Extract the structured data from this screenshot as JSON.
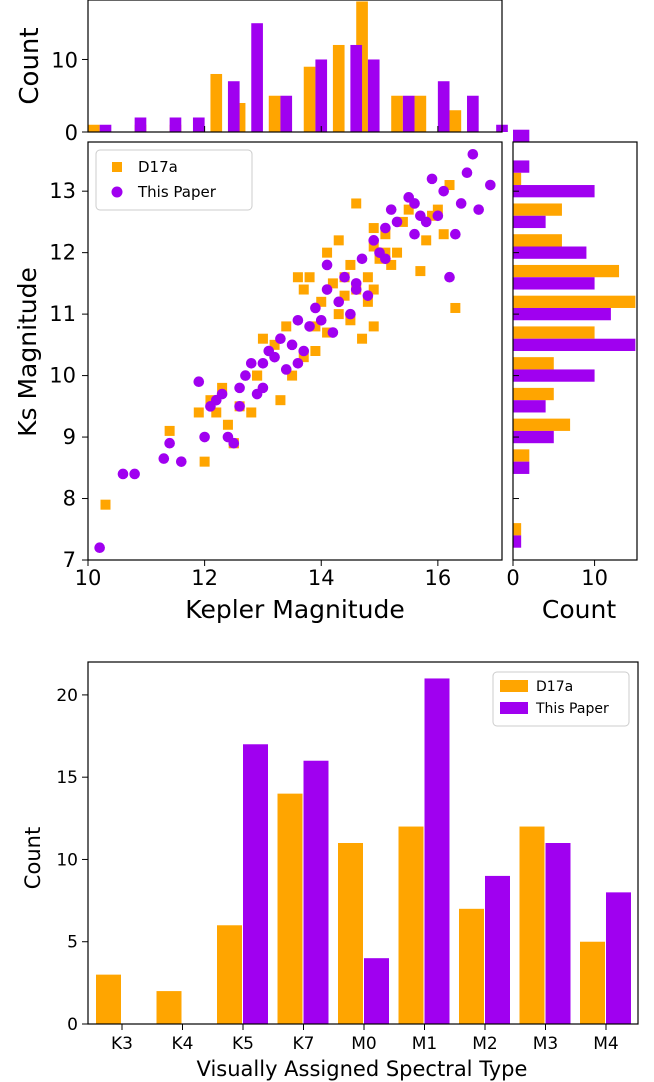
{
  "colors": {
    "d17a": "#ffa500",
    "this_paper": "#a000f0",
    "axis": "#000000",
    "background": "#ffffff"
  },
  "chart_data": [
    {
      "id": "top-hist",
      "type": "bar",
      "xlabel": "",
      "ylabel": "Count",
      "xlim": [
        10,
        17.1
      ],
      "ylim": [
        0,
        18.2
      ],
      "yticks": [
        "0",
        "10"
      ],
      "series": [
        {
          "name": "D17a",
          "color": "#ffa500",
          "bins": [
            [
              10.0,
              1
            ],
            [
              10.8,
              1
            ],
            [
              11.4,
              1
            ],
            [
              12.1,
              8
            ],
            [
              12.5,
              4
            ],
            [
              13.1,
              5
            ],
            [
              13.7,
              9
            ],
            [
              14.2,
              12
            ],
            [
              14.6,
              18
            ],
            [
              15.2,
              5
            ],
            [
              15.6,
              5
            ],
            [
              16.2,
              3
            ]
          ]
        },
        {
          "name": "This Paper",
          "color": "#a000f0",
          "bins": [
            [
              10.2,
              1
            ],
            [
              10.8,
              2
            ],
            [
              11.4,
              2
            ],
            [
              11.8,
              2
            ],
            [
              12.4,
              7
            ],
            [
              12.8,
              15
            ],
            [
              13.3,
              5
            ],
            [
              13.9,
              10
            ],
            [
              14.5,
              12
            ],
            [
              14.8,
              10
            ],
            [
              15.4,
              5
            ],
            [
              16.0,
              7
            ],
            [
              16.5,
              5
            ],
            [
              17.0,
              1
            ]
          ]
        }
      ]
    },
    {
      "id": "scatter",
      "type": "scatter",
      "xlabel": "Kepler Magnitude",
      "ylabel": "Ks Magnitude",
      "xlim": [
        10,
        17.1
      ],
      "ylim": [
        7,
        13.8
      ],
      "xticks": [
        "10",
        "12",
        "14",
        "16"
      ],
      "yticks": [
        "7",
        "8",
        "9",
        "10",
        "11",
        "12",
        "13"
      ],
      "legend": "top-left",
      "series": [
        {
          "name": "D17a",
          "marker": "square",
          "color": "#ffa500",
          "points": [
            [
              10.3,
              7.9
            ],
            [
              11.4,
              9.1
            ],
            [
              11.9,
              9.4
            ],
            [
              12.0,
              8.6
            ],
            [
              12.1,
              9.6
            ],
            [
              12.2,
              9.4
            ],
            [
              12.3,
              9.8
            ],
            [
              12.4,
              9.2
            ],
            [
              12.5,
              8.9
            ],
            [
              12.6,
              9.5
            ],
            [
              12.8,
              9.4
            ],
            [
              12.9,
              10.0
            ],
            [
              13.0,
              10.6
            ],
            [
              13.2,
              10.5
            ],
            [
              13.3,
              9.6
            ],
            [
              13.4,
              10.8
            ],
            [
              13.5,
              10.0
            ],
            [
              13.7,
              10.3
            ],
            [
              13.7,
              11.4
            ],
            [
              13.8,
              11.6
            ],
            [
              13.9,
              10.8
            ],
            [
              14.0,
              11.2
            ],
            [
              14.1,
              10.7
            ],
            [
              14.2,
              11.5
            ],
            [
              14.3,
              11.0
            ],
            [
              14.4,
              11.3
            ],
            [
              14.5,
              10.9
            ],
            [
              14.5,
              11.8
            ],
            [
              14.6,
              11.4
            ],
            [
              14.7,
              10.6
            ],
            [
              14.8,
              11.6
            ],
            [
              14.9,
              12.1
            ],
            [
              15.0,
              11.9
            ],
            [
              15.1,
              12.3
            ],
            [
              15.2,
              11.8
            ],
            [
              15.3,
              12.0
            ],
            [
              15.4,
              12.5
            ],
            [
              15.5,
              12.7
            ],
            [
              15.7,
              11.7
            ],
            [
              15.8,
              12.2
            ],
            [
              16.0,
              12.7
            ],
            [
              16.1,
              12.3
            ],
            [
              16.2,
              13.1
            ],
            [
              16.3,
              11.1
            ],
            [
              14.8,
              11.2
            ],
            [
              14.1,
              12.0
            ],
            [
              13.6,
              11.6
            ],
            [
              14.4,
              11.6
            ],
            [
              14.9,
              12.4
            ],
            [
              14.6,
              12.8
            ],
            [
              14.9,
              11.4
            ],
            [
              15.1,
              12.0
            ],
            [
              14.9,
              10.8
            ],
            [
              14.3,
              12.2
            ],
            [
              13.9,
              10.4
            ],
            [
              15.9,
              12.6
            ],
            [
              12.9,
              10.0
            ],
            [
              12.5,
              8.9
            ]
          ]
        },
        {
          "name": "This Paper",
          "marker": "circle",
          "color": "#a000f0",
          "points": [
            [
              10.2,
              7.2
            ],
            [
              10.6,
              8.4
            ],
            [
              10.8,
              8.4
            ],
            [
              11.3,
              8.65
            ],
            [
              11.4,
              8.9
            ],
            [
              11.6,
              8.6
            ],
            [
              11.9,
              9.9
            ],
            [
              12.0,
              9.0
            ],
            [
              12.2,
              9.6
            ],
            [
              12.3,
              9.7
            ],
            [
              12.4,
              9.0
            ],
            [
              12.5,
              8.9
            ],
            [
              12.6,
              9.8
            ],
            [
              12.7,
              10.0
            ],
            [
              12.8,
              10.2
            ],
            [
              12.9,
              9.7
            ],
            [
              13.0,
              10.2
            ],
            [
              13.1,
              10.4
            ],
            [
              13.3,
              10.6
            ],
            [
              13.4,
              10.1
            ],
            [
              13.5,
              10.5
            ],
            [
              13.6,
              10.2
            ],
            [
              13.7,
              10.4
            ],
            [
              13.8,
              10.8
            ],
            [
              13.9,
              11.1
            ],
            [
              14.0,
              10.9
            ],
            [
              14.1,
              11.4
            ],
            [
              14.2,
              10.7
            ],
            [
              14.3,
              11.2
            ],
            [
              14.4,
              11.6
            ],
            [
              14.5,
              11.0
            ],
            [
              14.6,
              11.5
            ],
            [
              14.7,
              11.9
            ],
            [
              14.8,
              11.3
            ],
            [
              14.9,
              12.2
            ],
            [
              15.0,
              12.0
            ],
            [
              15.1,
              12.4
            ],
            [
              15.2,
              12.7
            ],
            [
              15.3,
              12.5
            ],
            [
              15.5,
              12.9
            ],
            [
              15.6,
              12.8
            ],
            [
              15.7,
              12.6
            ],
            [
              15.8,
              12.5
            ],
            [
              15.9,
              13.2
            ],
            [
              16.0,
              12.6
            ],
            [
              16.1,
              13.0
            ],
            [
              16.2,
              11.6
            ],
            [
              16.3,
              12.3
            ],
            [
              16.4,
              12.8
            ],
            [
              16.5,
              13.3
            ],
            [
              16.6,
              13.6
            ],
            [
              16.7,
              12.7
            ],
            [
              16.9,
              13.1
            ],
            [
              13.2,
              10.3
            ],
            [
              13.6,
              10.9
            ],
            [
              14.1,
              11.8
            ],
            [
              14.6,
              11.4
            ],
            [
              15.1,
              11.9
            ],
            [
              15.6,
              12.3
            ],
            [
              12.1,
              9.5
            ],
            [
              12.6,
              9.5
            ],
            [
              13.0,
              9.8
            ]
          ]
        }
      ]
    },
    {
      "id": "right-hist",
      "type": "bar",
      "orientation": "horizontal",
      "xlabel": "Count",
      "ylabel": "",
      "xlim": [
        0,
        15.2
      ],
      "ylim": [
        7,
        13.8
      ],
      "xticks": [
        "0",
        "10"
      ],
      "series": [
        {
          "name": "D17a",
          "color": "#ffa500",
          "bins": [
            [
              7.4,
              1
            ],
            [
              8.6,
              2
            ],
            [
              9.1,
              7
            ],
            [
              9.6,
              5
            ],
            [
              10.1,
              5
            ],
            [
              10.6,
              10
            ],
            [
              11.1,
              15
            ],
            [
              11.6,
              13
            ],
            [
              12.1,
              6
            ],
            [
              12.6,
              6
            ],
            [
              13.1,
              1
            ]
          ]
        },
        {
          "name": "This Paper",
          "color": "#a000f0",
          "bins": [
            [
              7.2,
              1
            ],
            [
              8.4,
              2
            ],
            [
              8.9,
              5
            ],
            [
              9.4,
              4
            ],
            [
              9.9,
              10
            ],
            [
              10.4,
              15
            ],
            [
              10.9,
              12
            ],
            [
              11.4,
              10
            ],
            [
              11.9,
              9
            ],
            [
              12.4,
              4
            ],
            [
              12.9,
              10
            ],
            [
              13.3,
              2
            ],
            [
              13.8,
              2
            ]
          ]
        }
      ]
    },
    {
      "id": "spectral",
      "type": "bar",
      "xlabel": "Visually Assigned Spectral Type",
      "ylabel": "Count",
      "ylim": [
        0,
        22
      ],
      "yticks": [
        "0",
        "5",
        "10",
        "15",
        "20"
      ],
      "legend": "top-right",
      "categories": [
        "K3",
        "K4",
        "K5",
        "K7",
        "M0",
        "M1",
        "M2",
        "M3",
        "M4"
      ],
      "series": [
        {
          "name": "D17a",
          "color": "#ffa500",
          "values": [
            3,
            2,
            6,
            14,
            11,
            12,
            7,
            12,
            5
          ]
        },
        {
          "name": "This Paper",
          "color": "#a000f0",
          "values": [
            0,
            0,
            17,
            16,
            4,
            21,
            9,
            11,
            8
          ]
        }
      ]
    }
  ]
}
